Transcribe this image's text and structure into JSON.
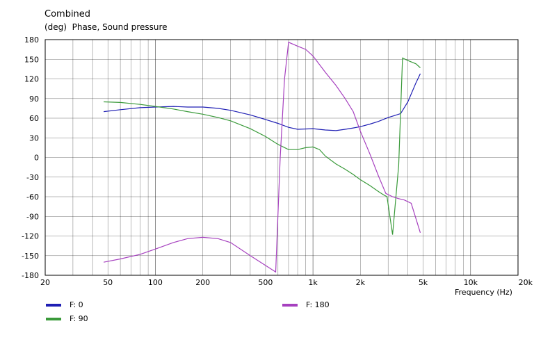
{
  "chart_data": {
    "type": "line",
    "title": "Combined",
    "subtitle": "(deg)  Phase, Sound pressure",
    "xlabel": "Frequency  (Hz)",
    "x_scale": "log",
    "xlim": [
      20,
      20000
    ],
    "ylim": [
      -180,
      180
    ],
    "grid": true,
    "y_ticks": [
      180,
      150,
      120,
      90,
      60,
      30,
      0,
      -30,
      -60,
      -90,
      -120,
      -150,
      -180
    ],
    "y_tick_labels": [
      "180",
      "150",
      "120",
      "90",
      "60",
      "30",
      "0",
      "-30",
      "-60",
      "-90",
      "-120",
      "-150",
      "-180"
    ],
    "x_ticks": [
      20,
      50,
      100,
      200,
      500,
      1000,
      2000,
      5000,
      10000,
      20000
    ],
    "x_tick_labels": [
      "20",
      "50",
      "100",
      "200",
      "500",
      "1k",
      "2k",
      "5k",
      "10k",
      "20k"
    ],
    "legend_placement": "bottom",
    "series": [
      {
        "name": "F: 0",
        "color": "#1f1fb4",
        "x": [
          47,
          60,
          80,
          100,
          130,
          160,
          200,
          250,
          300,
          400,
          500,
          600,
          700,
          800,
          1000,
          1200,
          1400,
          1600,
          1800,
          2000,
          2300,
          2600,
          3000,
          3300,
          3600,
          4000,
          4500,
          4800
        ],
        "y": [
          70,
          73,
          76,
          77,
          78,
          77,
          77,
          75,
          72,
          65,
          58,
          52,
          46,
          43,
          44,
          42,
          41,
          43,
          45,
          47,
          51,
          55,
          61,
          64,
          67,
          85,
          114,
          128
        ]
      },
      {
        "name": "F: 90",
        "color": "#3a9a3a",
        "x": [
          47,
          60,
          80,
          100,
          130,
          160,
          200,
          250,
          300,
          400,
          500,
          600,
          700,
          800,
          900,
          1000,
          1100,
          1200,
          1400,
          1600,
          1800,
          2000,
          2300,
          2600,
          2800,
          2950,
          3200,
          3500,
          3700,
          4000,
          4500,
          4800
        ],
        "y": [
          85,
          84,
          81,
          78,
          74,
          70,
          66,
          61,
          56,
          44,
          32,
          20,
          12,
          12,
          15,
          16,
          12,
          2,
          -10,
          -18,
          -26,
          -34,
          -43,
          -52,
          -57,
          -60,
          -118,
          -12,
          152,
          148,
          143,
          137
        ]
      },
      {
        "name": "F: 180",
        "color": "#a640bf",
        "x": [
          47,
          60,
          80,
          100,
          130,
          160,
          200,
          250,
          300,
          400,
          500,
          580,
          620,
          660,
          700,
          800,
          900,
          1000,
          1200,
          1400,
          1600,
          1800,
          2000,
          2300,
          2600,
          2900,
          3200,
          3500,
          3800,
          4200,
          4800
        ],
        "y": [
          -160,
          -155,
          -148,
          -140,
          -130,
          -124,
          -122,
          -124,
          -130,
          -150,
          -165,
          -175,
          0,
          120,
          176,
          170,
          165,
          155,
          130,
          110,
          90,
          70,
          40,
          5,
          -28,
          -55,
          -60,
          -63,
          -65,
          -70,
          -115
        ]
      }
    ]
  }
}
